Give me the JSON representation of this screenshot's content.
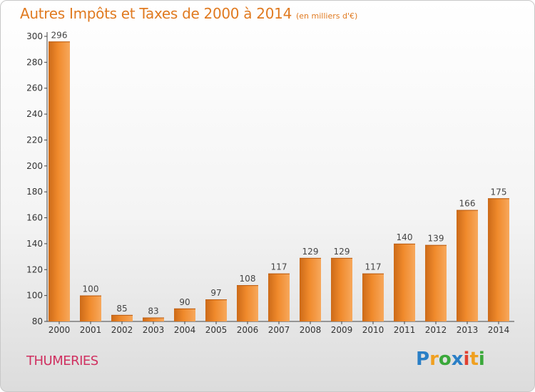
{
  "chart_data": {
    "type": "bar",
    "title": "Autres Impôts et Taxes de 2000 à 2014",
    "subtitle": "(en milliers d'€)",
    "categories": [
      "2000",
      "2001",
      "2002",
      "2003",
      "2004",
      "2005",
      "2006",
      "2007",
      "2008",
      "2009",
      "2010",
      "2011",
      "2012",
      "2013",
      "2014"
    ],
    "values": [
      296,
      100,
      85,
      83,
      90,
      97,
      108,
      117,
      129,
      129,
      117,
      140,
      139,
      166,
      175
    ],
    "value_labels": [
      "296",
      "100",
      "85",
      "83",
      "90",
      "97",
      "108",
      "117",
      "129",
      "129",
      "117",
      "140",
      "139",
      "166",
      "175"
    ],
    "ylim": [
      80,
      300
    ],
    "yticks": [
      "80",
      "100",
      "120",
      "140",
      "160",
      "180",
      "200",
      "220",
      "240",
      "260",
      "280",
      "300"
    ],
    "xlabel": "",
    "ylabel": "",
    "grid": false,
    "bar_color": "#f08a2c",
    "bar_color_light": "#f7a85c",
    "bar_color_dark": "#cc6a18"
  },
  "commune": "THUMERIES",
  "logo": {
    "letters": [
      "P",
      "r",
      "o",
      "x",
      "i",
      "t",
      "i"
    ],
    "colors": [
      "#2a7fc6",
      "#f0a020",
      "#3aa83a",
      "#2a7fc6",
      "#e04030",
      "#f0a020",
      "#3aa83a"
    ]
  }
}
